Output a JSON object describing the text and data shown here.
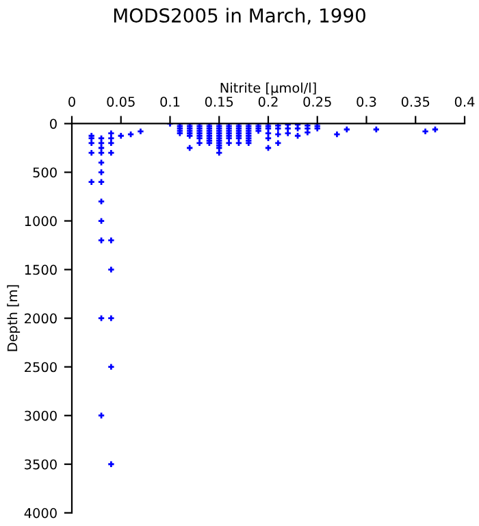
{
  "chart_data": {
    "type": "scatter",
    "title": "MODS2005 in March, 1990",
    "xlabel": "Nitrite [µmol/l]",
    "ylabel": "Depth [m]",
    "series": [
      {
        "color": "#0000ff",
        "x": [
          0.02,
          0.02,
          0.02,
          0.02,
          0.02,
          0.03,
          0.03,
          0.03,
          0.03,
          0.03,
          0.03,
          0.03,
          0.03,
          0.03,
          0.03,
          0.03,
          0.03,
          0.04,
          0.04,
          0.04,
          0.04,
          0.04,
          0.04,
          0.04,
          0.04,
          0.04,
          0.05,
          0.06,
          0.07,
          0.1,
          0.11,
          0.11,
          0.11,
          0.11,
          0.11,
          0.12,
          0.12,
          0.12,
          0.12,
          0.12,
          0.12,
          0.12,
          0.13,
          0.13,
          0.13,
          0.13,
          0.13,
          0.13,
          0.13,
          0.13,
          0.14,
          0.14,
          0.14,
          0.14,
          0.14,
          0.14,
          0.14,
          0.14,
          0.14,
          0.15,
          0.15,
          0.15,
          0.15,
          0.15,
          0.15,
          0.15,
          0.15,
          0.15,
          0.15,
          0.15,
          0.15,
          0.16,
          0.16,
          0.16,
          0.16,
          0.16,
          0.16,
          0.16,
          0.16,
          0.17,
          0.17,
          0.17,
          0.17,
          0.17,
          0.17,
          0.17,
          0.17,
          0.18,
          0.18,
          0.18,
          0.18,
          0.18,
          0.18,
          0.18,
          0.18,
          0.18,
          0.19,
          0.19,
          0.19,
          0.19,
          0.2,
          0.2,
          0.2,
          0.2,
          0.2,
          0.2,
          0.21,
          0.21,
          0.21,
          0.21,
          0.22,
          0.22,
          0.22,
          0.23,
          0.23,
          0.23,
          0.24,
          0.24,
          0.24,
          0.25,
          0.25,
          0.25,
          0.27,
          0.28,
          0.31,
          0.36,
          0.37
        ],
        "values": [
          125,
          150,
          200,
          300,
          600,
          150,
          200,
          250,
          300,
          400,
          500,
          600,
          800,
          1000,
          1200,
          2000,
          3000,
          100,
          150,
          200,
          300,
          1200,
          1500,
          2000,
          2500,
          3500,
          125,
          110,
          80,
          0,
          0,
          25,
          50,
          75,
          100,
          0,
          25,
          50,
          75,
          100,
          125,
          250,
          0,
          25,
          50,
          75,
          100,
          125,
          150,
          200,
          0,
          25,
          50,
          75,
          100,
          125,
          150,
          175,
          200,
          0,
          25,
          50,
          75,
          100,
          125,
          150,
          175,
          200,
          225,
          250,
          300,
          0,
          25,
          50,
          75,
          100,
          125,
          150,
          200,
          0,
          25,
          50,
          75,
          100,
          125,
          150,
          200,
          0,
          25,
          50,
          75,
          100,
          125,
          150,
          175,
          200,
          0,
          25,
          50,
          75,
          0,
          25,
          50,
          100,
          150,
          250,
          20,
          50,
          110,
          200,
          10,
          50,
          100,
          10,
          50,
          125,
          20,
          50,
          90,
          0,
          25,
          50,
          110,
          60,
          60,
          80,
          60
        ]
      }
    ],
    "xlim": [
      0,
      0.4
    ],
    "ylim": [
      4000,
      0
    ],
    "xticks": [
      0,
      0.05,
      0.1,
      0.15,
      0.2,
      0.25,
      0.3,
      0.35,
      0.4
    ],
    "yticks": [
      0,
      500,
      1000,
      1500,
      2000,
      2500,
      3000,
      3500,
      4000
    ],
    "marker": "cross",
    "grid": false,
    "legend": false
  }
}
